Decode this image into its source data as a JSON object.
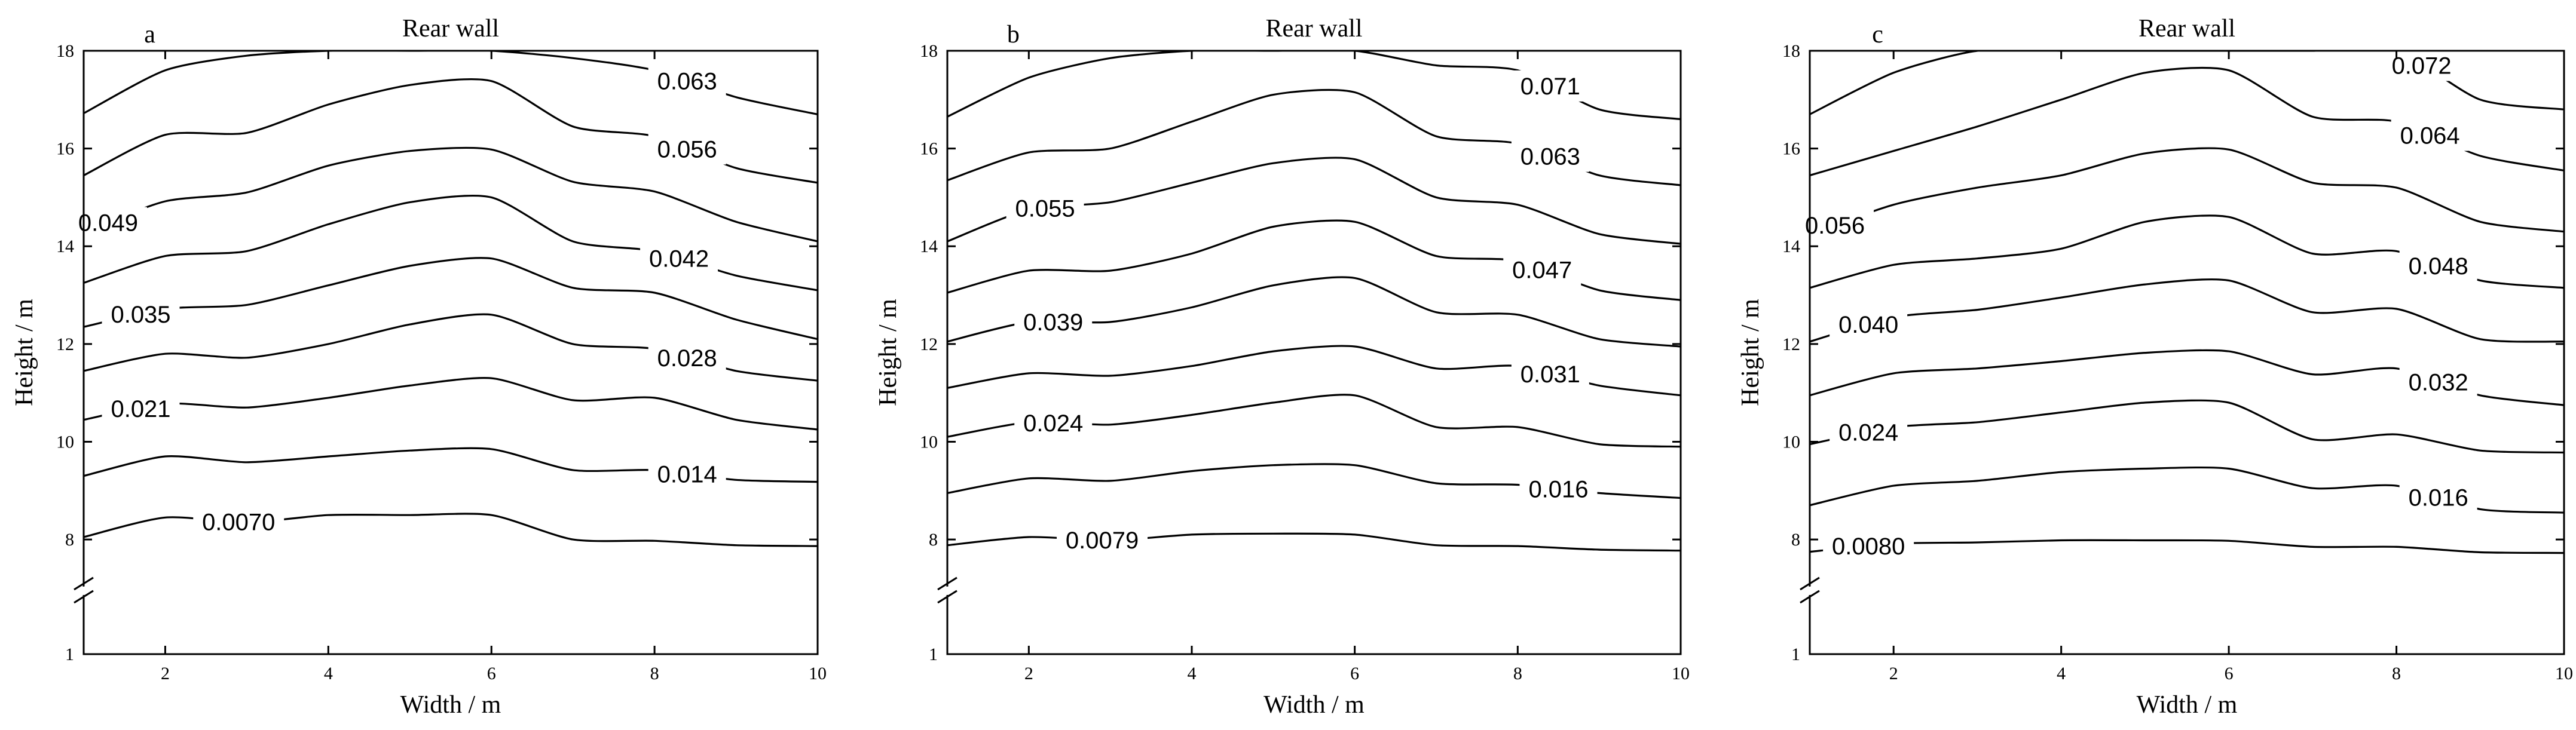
{
  "chart_data": [
    {
      "type": "line",
      "letter": "a",
      "title": "Rear wall",
      "xlabel": "Width / m",
      "ylabel": "Height / m",
      "xlim": [
        1,
        10
      ],
      "xticks": [
        2,
        4,
        6,
        8,
        10
      ],
      "yticks": [
        1,
        8,
        10,
        12,
        14,
        16,
        18
      ],
      "ylim": [
        6.5,
        18
      ],
      "axis_break": {
        "between": [
          1,
          8
        ]
      },
      "grid": false,
      "x": [
        1,
        2,
        3,
        4,
        5,
        6,
        7,
        8,
        9,
        10
      ],
      "series": [
        {
          "name": "0.0070",
          "label_at_x": 2.9,
          "values": [
            8.05,
            8.45,
            8.35,
            8.5,
            8.5,
            8.5,
            8.0,
            7.92,
            7.65,
            7.6
          ]
        },
        {
          "name": "0.014",
          "label_at_x": 8.4,
          "values": [
            9.3,
            9.7,
            9.58,
            9.7,
            9.82,
            9.85,
            9.42,
            9.42,
            9.22,
            9.18
          ]
        },
        {
          "name": "0.021",
          "label_at_x": 1.7,
          "values": [
            10.45,
            10.78,
            10.7,
            10.9,
            11.15,
            11.3,
            10.85,
            10.9,
            10.45,
            10.25
          ]
        },
        {
          "name": "0.028",
          "label_at_x": 8.4,
          "values": [
            11.45,
            11.8,
            11.72,
            12.0,
            12.4,
            12.6,
            12.0,
            11.9,
            11.45,
            11.25
          ]
        },
        {
          "name": "0.035",
          "label_at_x": 1.7,
          "values": [
            12.35,
            12.72,
            12.8,
            13.2,
            13.6,
            13.75,
            13.15,
            13.05,
            12.5,
            12.1
          ]
        },
        {
          "name": "0.042",
          "label_at_x": 8.3,
          "values": [
            13.25,
            13.8,
            13.9,
            14.45,
            14.9,
            15.0,
            14.1,
            13.9,
            13.4,
            13.1
          ]
        },
        {
          "name": "0.049",
          "label_at_x": 1.3,
          "values": [
            14.3,
            14.92,
            15.1,
            15.65,
            15.95,
            15.98,
            15.32,
            15.12,
            14.5,
            14.1
          ]
        },
        {
          "name": "0.056",
          "label_at_x": 8.4,
          "values": [
            15.45,
            16.28,
            16.32,
            16.9,
            17.3,
            17.38,
            16.45,
            16.25,
            15.6,
            15.3
          ]
        },
        {
          "name": "0.063",
          "label_at_x": 8.4,
          "values": [
            16.72,
            17.6,
            17.9,
            18.0,
            18.0,
            18.0,
            17.85,
            17.6,
            17.05,
            16.7
          ]
        }
      ]
    },
    {
      "type": "line",
      "letter": "b",
      "title": "Rear wall",
      "xlabel": "Width / m",
      "ylabel": "Height / m",
      "xlim": [
        1,
        10
      ],
      "xticks": [
        2,
        4,
        6,
        8,
        10
      ],
      "yticks": [
        1,
        8,
        10,
        12,
        14,
        16,
        18
      ],
      "ylim": [
        6.5,
        18
      ],
      "axis_break": {
        "between": [
          1,
          8
        ]
      },
      "grid": false,
      "x": [
        1,
        2,
        3,
        4,
        5,
        6,
        7,
        8,
        9,
        10
      ],
      "series": [
        {
          "name": "0.0079",
          "label_at_x": 2.9,
          "values": [
            7.65,
            8.05,
            7.95,
            8.1,
            8.12,
            8.1,
            7.65,
            7.6,
            7.38,
            7.32
          ]
        },
        {
          "name": "0.016",
          "label_at_x": 8.5,
          "values": [
            8.95,
            9.25,
            9.2,
            9.4,
            9.52,
            9.52,
            9.15,
            9.12,
            8.95,
            8.85
          ]
        },
        {
          "name": "0.024",
          "label_at_x": 2.3,
          "values": [
            10.1,
            10.4,
            10.35,
            10.55,
            10.8,
            10.95,
            10.3,
            10.3,
            9.95,
            9.9
          ]
        },
        {
          "name": "0.031",
          "label_at_x": 8.4,
          "values": [
            11.1,
            11.4,
            11.35,
            11.55,
            11.85,
            11.95,
            11.5,
            11.55,
            11.15,
            10.95
          ]
        },
        {
          "name": "0.039",
          "label_at_x": 2.3,
          "values": [
            12.05,
            12.45,
            12.45,
            12.75,
            13.2,
            13.35,
            12.65,
            12.6,
            12.1,
            11.95
          ]
        },
        {
          "name": "0.047",
          "label_at_x": 8.3,
          "values": [
            13.05,
            13.5,
            13.5,
            13.85,
            14.4,
            14.5,
            13.8,
            13.7,
            13.1,
            12.9
          ]
        },
        {
          "name": "0.055",
          "label_at_x": 2.2,
          "values": [
            14.1,
            14.75,
            14.9,
            15.3,
            15.7,
            15.78,
            15.0,
            14.85,
            14.25,
            14.05
          ]
        },
        {
          "name": "0.063",
          "label_at_x": 8.4,
          "values": [
            15.35,
            15.92,
            16.0,
            16.55,
            17.1,
            17.15,
            16.25,
            16.1,
            15.45,
            15.25
          ]
        },
        {
          "name": "0.071",
          "label_at_x": 8.4,
          "values": [
            16.65,
            17.45,
            17.85,
            18.0,
            18.0,
            18.0,
            17.7,
            17.6,
            16.8,
            16.6
          ]
        }
      ]
    },
    {
      "type": "line",
      "letter": "c",
      "title": "Rear wall",
      "xlabel": "Width / m",
      "ylabel": "Height / m",
      "xlim": [
        1,
        10
      ],
      "xticks": [
        2,
        4,
        6,
        8,
        10
      ],
      "yticks": [
        1,
        8,
        10,
        12,
        14,
        16,
        18
      ],
      "ylim": [
        6.5,
        18
      ],
      "axis_break": {
        "between": [
          1,
          8
        ]
      },
      "grid": false,
      "x": [
        1,
        2,
        3,
        4,
        5,
        6,
        7,
        8,
        9,
        10
      ],
      "series": [
        {
          "name": "0.0080",
          "label_at_x": 1.7,
          "values": [
            7.25,
            7.75,
            7.82,
            7.95,
            7.95,
            7.92,
            7.55,
            7.55,
            7.22,
            7.18
          ]
        },
        {
          "name": "0.016",
          "label_at_x": 8.5,
          "values": [
            8.7,
            9.1,
            9.2,
            9.38,
            9.45,
            9.45,
            9.05,
            9.1,
            8.62,
            8.55
          ]
        },
        {
          "name": "0.024",
          "label_at_x": 1.7,
          "values": [
            9.95,
            10.3,
            10.4,
            10.6,
            10.8,
            10.8,
            10.05,
            10.15,
            9.82,
            9.78
          ]
        },
        {
          "name": "0.032",
          "label_at_x": 8.5,
          "values": [
            10.95,
            11.4,
            11.5,
            11.65,
            11.82,
            11.85,
            11.38,
            11.5,
            10.95,
            10.75
          ]
        },
        {
          "name": "0.040",
          "label_at_x": 1.7,
          "values": [
            12.05,
            12.55,
            12.7,
            12.95,
            13.22,
            13.3,
            12.65,
            12.72,
            12.1,
            12.05
          ]
        },
        {
          "name": "0.048",
          "label_at_x": 8.5,
          "values": [
            13.15,
            13.62,
            13.75,
            13.95,
            14.5,
            14.6,
            13.85,
            13.9,
            13.3,
            13.15
          ]
        },
        {
          "name": "0.056",
          "label_at_x": 1.3,
          "values": [
            14.25,
            14.85,
            15.2,
            15.45,
            15.9,
            15.98,
            15.3,
            15.2,
            14.5,
            14.3
          ]
        },
        {
          "name": "0.064",
          "label_at_x": 8.4,
          "values": [
            15.45,
            15.95,
            16.45,
            17.0,
            17.55,
            17.6,
            16.65,
            16.55,
            15.85,
            15.55
          ]
        },
        {
          "name": "0.072",
          "label_at_x": 8.3,
          "values": [
            16.7,
            17.55,
            18.0,
            18.0,
            18.0,
            18.0,
            18.0,
            18.0,
            17.0,
            16.8
          ]
        }
      ]
    }
  ]
}
